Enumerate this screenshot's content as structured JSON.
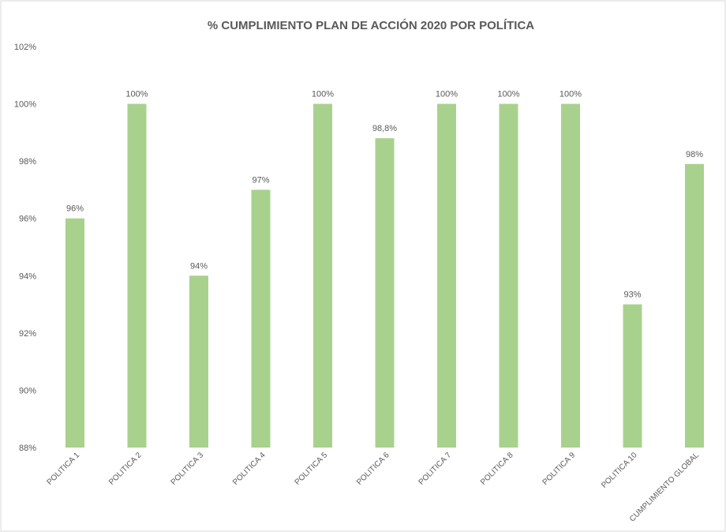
{
  "chart_data": {
    "type": "bar",
    "title": "% CUMPLIMIENTO PLAN DE ACCIÓN 2020 POR POLÍTICA",
    "categories": [
      "POLITICA 1",
      "POLITICA 2",
      "POLITICA 3",
      "POLITICA 4",
      "POLITICA 5",
      "POLITICA 6",
      "POLITICA 7",
      "POLITICA 8",
      "POLITICA 9",
      "POLITICA 10",
      "CUMPLIMIENTO GLOBAL"
    ],
    "values": [
      96,
      100,
      94,
      97,
      100,
      98.8,
      100,
      100,
      100,
      93,
      97.9
    ],
    "data_labels": [
      "96%",
      "100%",
      "94%",
      "97%",
      "100%",
      "98,8%",
      "100%",
      "100%",
      "100%",
      "93%",
      "98%"
    ],
    "yticks": [
      88,
      90,
      92,
      94,
      96,
      98,
      100,
      102
    ],
    "ytick_labels": [
      "88%",
      "90%",
      "92%",
      "94%",
      "96%",
      "98%",
      "100%",
      "102%"
    ],
    "ylim": [
      88,
      102
    ],
    "grid": false,
    "legend": "none",
    "bar_color": "#a9d18e",
    "text_color": "#595959",
    "border_color": "#d9d9d9"
  }
}
